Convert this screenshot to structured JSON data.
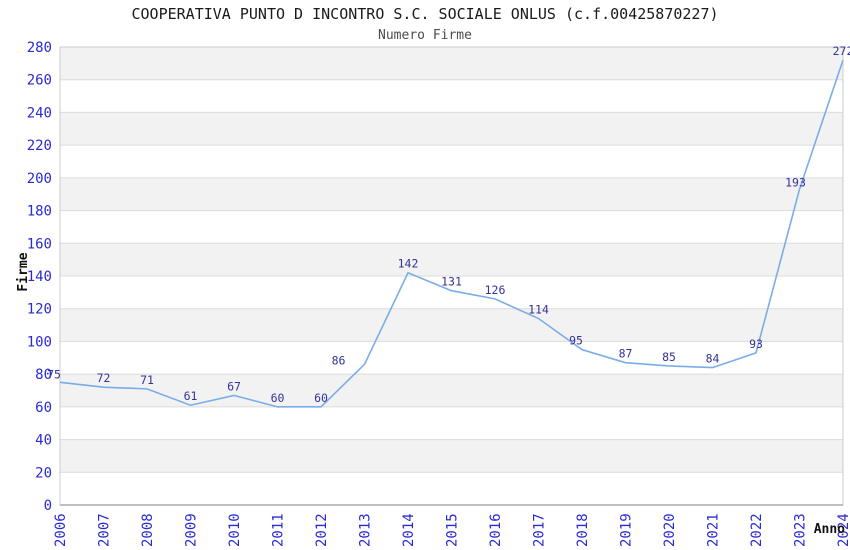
{
  "title": "COOPERATIVA PUNTO D INCONTRO S.C. SOCIALE ONLUS (c.f.00425870227)",
  "subtitle": "Numero Firme",
  "chart_data": {
    "type": "line",
    "x": [
      2006,
      2007,
      2008,
      2009,
      2010,
      2011,
      2012,
      2013,
      2014,
      2015,
      2016,
      2017,
      2018,
      2019,
      2020,
      2021,
      2022,
      2023,
      2024
    ],
    "series": [
      {
        "name": "Numero Firme",
        "values": [
          75,
          72,
          71,
          61,
          67,
          60,
          60,
          86,
          142,
          131,
          126,
          114,
          95,
          87,
          85,
          84,
          93,
          193,
          272
        ]
      }
    ],
    "title": "COOPERATIVA PUNTO D INCONTRO S.C. SOCIALE ONLUS (c.f.00425870227)",
    "subtitle": "Numero Firme",
    "xlabel": "Anno",
    "ylabel": "Firme",
    "ylim": [
      0,
      280
    ],
    "ytick_step": 20,
    "yticks": [
      0,
      20,
      40,
      60,
      80,
      100,
      120,
      140,
      160,
      180,
      200,
      220,
      240,
      260,
      280
    ],
    "grid": true,
    "alternating_row_bands": true,
    "data_labels_visible": true,
    "legend_position": "none",
    "x_tick_rotation_deg": -90,
    "colors": {
      "line": "#79ade7",
      "tick_label": "#2a2ad2",
      "data_label": "#333399",
      "band_fill": "#f2f2f2",
      "gridline": "#dcdcdc",
      "plot_border": "#cccccc",
      "axis_bottom_line": "#aaaaaa",
      "title_text": "#1a1a1a",
      "subtitle_text": "#4d4d4d",
      "axis_title_text": "#111111",
      "background": "#ffffff"
    }
  }
}
